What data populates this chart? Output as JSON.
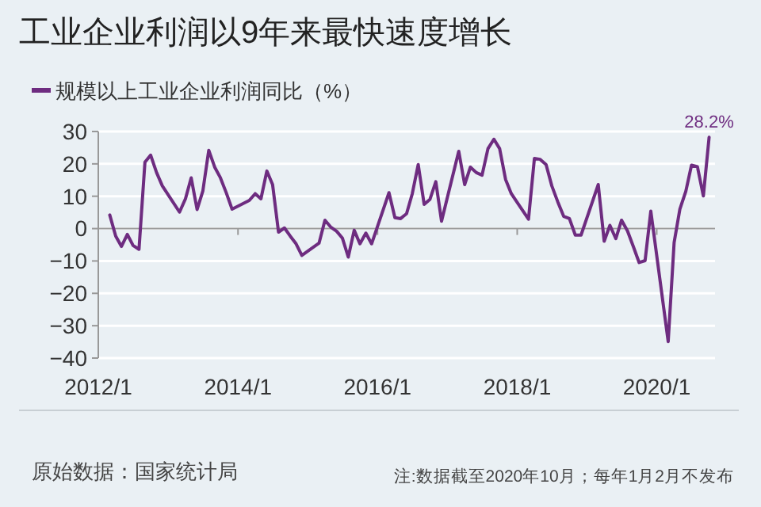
{
  "chart_data": {
    "type": "line",
    "title": "工业企业利润以9年来最快速度增长",
    "x": [
      "2012-03",
      "2012-04",
      "2012-05",
      "2012-06",
      "2012-07",
      "2012-08",
      "2012-09",
      "2012-10",
      "2012-11",
      "2012-12",
      "2013-03",
      "2013-04",
      "2013-05",
      "2013-06",
      "2013-07",
      "2013-08",
      "2013-09",
      "2013-10",
      "2013-11",
      "2013-12",
      "2014-03",
      "2014-04",
      "2014-05",
      "2014-06",
      "2014-07",
      "2014-08",
      "2014-09",
      "2014-10",
      "2014-11",
      "2014-12",
      "2015-03",
      "2015-04",
      "2015-05",
      "2015-06",
      "2015-07",
      "2015-08",
      "2015-09",
      "2015-10",
      "2015-11",
      "2015-12",
      "2016-03",
      "2016-04",
      "2016-05",
      "2016-06",
      "2016-07",
      "2016-08",
      "2016-09",
      "2016-10",
      "2016-11",
      "2016-12",
      "2017-03",
      "2017-04",
      "2017-05",
      "2017-06",
      "2017-07",
      "2017-08",
      "2017-09",
      "2017-10",
      "2017-11",
      "2017-12",
      "2018-03",
      "2018-04",
      "2018-05",
      "2018-06",
      "2018-07",
      "2018-08",
      "2018-09",
      "2018-10",
      "2018-11",
      "2018-12",
      "2019-03",
      "2019-04",
      "2019-05",
      "2019-06",
      "2019-07",
      "2019-08",
      "2019-09",
      "2019-10",
      "2019-11",
      "2019-12",
      "2020-03",
      "2020-04",
      "2020-05",
      "2020-06",
      "2020-07",
      "2020-08",
      "2020-09",
      "2020-10"
    ],
    "series": [
      {
        "name": "规模以上工业企业利润同比（%）",
        "color": "#6e2c80",
        "values": [
          4.2,
          -2.3,
          -5.5,
          -1.8,
          -5.2,
          -6.4,
          20.5,
          22.7,
          17.3,
          13.2,
          5.1,
          9.2,
          15.7,
          5.9,
          11.6,
          24.2,
          19,
          15.7,
          11,
          6,
          8.7,
          10.8,
          9.2,
          17.8,
          13.6,
          -1.1,
          0.2,
          -2.3,
          -4.7,
          -8.3,
          -4.5,
          2.6,
          0.5,
          -0.8,
          -2.9,
          -8.8,
          -0.5,
          -4.7,
          -1.4,
          -4.7,
          11.1,
          3.4,
          3.1,
          4.6,
          10.8,
          19.8,
          7.5,
          9,
          14.5,
          2.3,
          23.9,
          13.6,
          19,
          17.3,
          16.5,
          24.7,
          27.6,
          24.7,
          15.2,
          10.8,
          2.9,
          21.7,
          21.4,
          19.8,
          13.2,
          8.3,
          3.8,
          3.1,
          -2,
          -2,
          13.6,
          -3.9,
          1,
          -3.1,
          2.6,
          -0.7,
          -5.6,
          -10.5,
          -9.9,
          5.4,
          -34.9,
          -4.3,
          6,
          11.5,
          19.6,
          19.1,
          10.1,
          28.2
        ]
      }
    ],
    "xlim": [
      "2012-01",
      "2020-11"
    ],
    "xticks": [
      {
        "value": "2012-01",
        "label": "2012/1"
      },
      {
        "value": "2014-01",
        "label": "2014/1"
      },
      {
        "value": "2016-01",
        "label": "2016/1"
      },
      {
        "value": "2018-01",
        "label": "2018/1"
      },
      {
        "value": "2020-01",
        "label": "2020/1"
      }
    ],
    "ylim": [
      -40,
      30
    ],
    "yticks": [
      -40,
      -30,
      -20,
      -10,
      0,
      10,
      20,
      30
    ],
    "grid": "y",
    "legend": "top left",
    "marker": "none",
    "line_style": "solid",
    "annotations": [
      {
        "text": "28.2%",
        "x": "2020-10",
        "y": 28.2
      },
      "原始数据：国家统计局",
      "注:数据截至2020年10月；每年1月2月不发布"
    ]
  }
}
